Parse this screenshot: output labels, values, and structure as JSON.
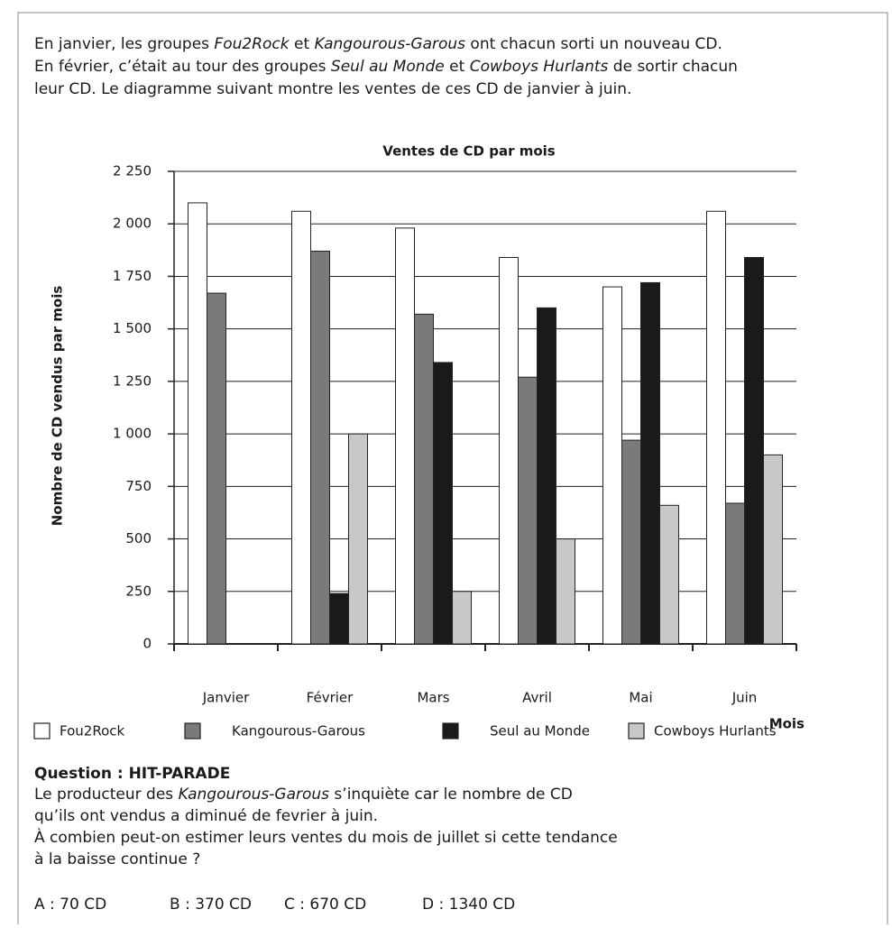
{
  "intro": [
    [
      {
        "text": "En janvier, les groupes "
      },
      {
        "text": "Fou2Rock",
        "italic": true
      },
      {
        "text": " et "
      },
      {
        "text": "Kangourous-Garous",
        "italic": true
      },
      {
        "text": " ont chacun sorti un nouveau CD."
      }
    ],
    [
      {
        "text": "En février, c’était au tour des groupes "
      },
      {
        "text": "Seul au Monde",
        "italic": true
      },
      {
        "text": " et "
      },
      {
        "text": "Cowboys Hurlants",
        "italic": true
      },
      {
        "text": " de sortir chacun"
      }
    ],
    [
      {
        "text": "leur CD. Le diagramme suivant montre les ventes de ces CD de janvier à juin."
      }
    ]
  ],
  "chart_data": {
    "type": "bar",
    "title": "Ventes de CD par mois",
    "x_label": "Mois",
    "y_label": "Nombre de CD vendus par mois",
    "categories": [
      "Janvier",
      "Février",
      "Mars",
      "Avril",
      "Mai",
      "Juin"
    ],
    "series": [
      {
        "name": "Fou2Rock",
        "color": "#ffffff",
        "values": [
          2100,
          2060,
          1980,
          1840,
          1700,
          2060
        ]
      },
      {
        "name": "Kangourous-Garous",
        "color": "#7a7a7a",
        "values": [
          1670,
          1870,
          1570,
          1270,
          970,
          670
        ]
      },
      {
        "name": "Seul au Monde",
        "color": "#1a1a1a",
        "values": [
          null,
          240,
          1340,
          1600,
          1720,
          1840
        ]
      },
      {
        "name": "Cowboys Hurlants",
        "color": "#c8c8c8",
        "values": [
          null,
          1000,
          250,
          500,
          660,
          900
        ]
      }
    ],
    "ylim": [
      0,
      2250
    ],
    "yticks": [
      0,
      250,
      500,
      750,
      {
        "value": 1000,
        "label": "1 000"
      },
      {
        "value": 1250,
        "label": "1 250"
      },
      {
        "value": 1500,
        "label": "1 500"
      },
      {
        "value": 1750,
        "label": "1 750"
      },
      {
        "value": 2000,
        "label": "2 000"
      },
      {
        "value": 2250,
        "label": "2 250"
      }
    ],
    "grid": true
  },
  "question": {
    "title": "Question : HIT-PARADE",
    "lines": [
      [
        {
          "text": "Le producteur des "
        },
        {
          "text": "Kangourous-Garous",
          "italic": true
        },
        {
          "text": " s’inquiète car le nombre de CD"
        }
      ],
      [
        {
          "text": "qu’ils ont vendus a diminué de fevrier à juin."
        }
      ],
      [
        {
          "text": "À combien peut-on estimer leurs ventes du mois de juillet si cette tendance"
        }
      ],
      [
        {
          "text": "à la baisse continue ?"
        }
      ]
    ],
    "options": [
      "A : 70 CD",
      "B : 370 CD",
      "C : 670 CD",
      "D : 1340 CD"
    ]
  }
}
